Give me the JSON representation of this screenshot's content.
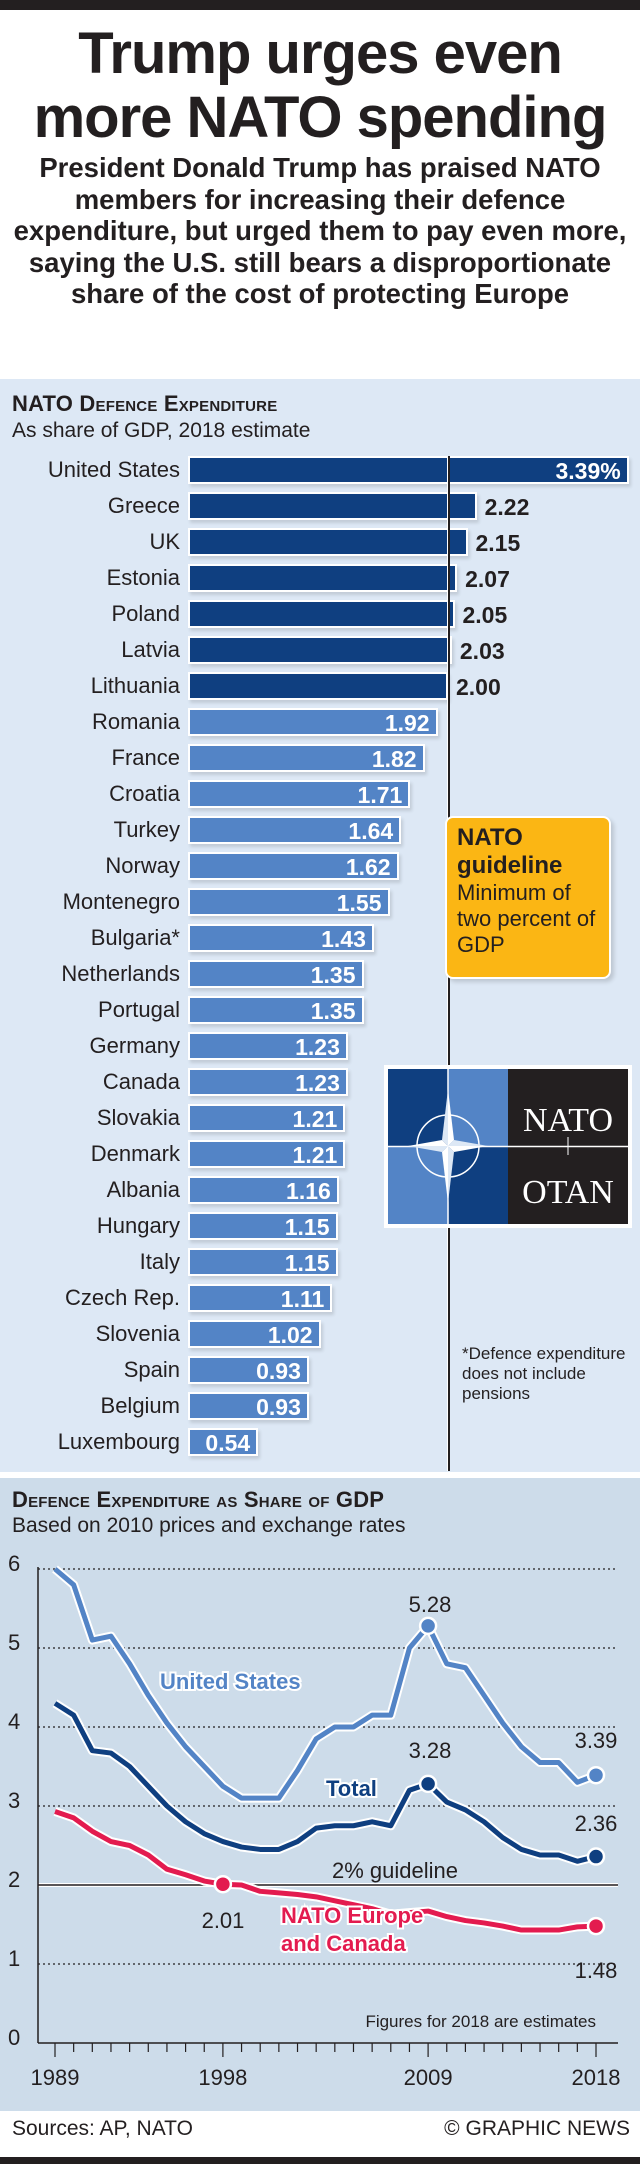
{
  "header": {
    "title_line1": "Trump urges even",
    "title_line2": "more NATO spending",
    "intro": "President Donald Trump has praised NATO members for increasing their defence expenditure, but urged them to pay even more, saying the U.S. still bears a disproportionate share of the cost of protecting Europe"
  },
  "colors": {
    "dark_blue": "#0f3f80",
    "light_blue": "#5384c6",
    "red": "#e31b4f",
    "guideline_box": "#fbb614"
  },
  "chart_data": [
    {
      "type": "bar",
      "orientation": "horizontal",
      "title": "NATO Defence Expenditure",
      "subtitle": "As share of GDP, 2018 estimate",
      "unit_suffix_first": "%",
      "reference_line": 2,
      "categories": [
        "United States",
        "Greece",
        "UK",
        "Estonia",
        "Poland",
        "Latvia",
        "Lithuania",
        "Romania",
        "France",
        "Croatia",
        "Turkey",
        "Norway",
        "Montenegro",
        "Bulgaria*",
        "Netherlands",
        "Portugal",
        "Germany",
        "Canada",
        "Slovakia",
        "Denmark",
        "Albania",
        "Hungary",
        "Italy",
        "Czech Rep.",
        "Slovenia",
        "Spain",
        "Belgium",
        "Luxembourg"
      ],
      "values": [
        3.39,
        2.22,
        2.15,
        2.07,
        2.05,
        2.03,
        2.0,
        1.92,
        1.82,
        1.71,
        1.64,
        1.62,
        1.55,
        1.43,
        1.35,
        1.35,
        1.23,
        1.23,
        1.21,
        1.21,
        1.16,
        1.15,
        1.15,
        1.11,
        1.02,
        0.93,
        0.93,
        0.54
      ],
      "labels": [
        "3.39%",
        "2.22",
        "2.15",
        "2.07",
        "2.05",
        "2.03",
        "2.00",
        "1.92",
        "1.82",
        "1.71",
        "1.64",
        "1.62",
        "1.55",
        "1.43",
        "1.35",
        "1.35",
        "1.23",
        "1.23",
        "1.21",
        "1.21",
        "1.16",
        "1.15",
        "1.15",
        "1.11",
        "1.02",
        "0.93",
        "0.93",
        "0.54"
      ]
    },
    {
      "type": "line",
      "title": "Defence Expenditure as Share of GDP",
      "subtitle": "Based on 2010 prices and exchange rates",
      "ylim": [
        0,
        6
      ],
      "yticks": [
        "0",
        "1",
        "2",
        "3",
        "4",
        "5",
        "6"
      ],
      "xlim": [
        1989,
        2018
      ],
      "xtick_labels": [
        "1989",
        "1998",
        "2009",
        "2018"
      ],
      "grid": "dotted horizontal",
      "x": [
        1989,
        1990,
        1991,
        1992,
        1993,
        1994,
        1995,
        1996,
        1997,
        1998,
        1999,
        2000,
        2001,
        2002,
        2003,
        2004,
        2005,
        2006,
        2007,
        2008,
        2009,
        2010,
        2011,
        2012,
        2013,
        2014,
        2015,
        2016,
        2017,
        2018
      ],
      "series": [
        {
          "name": "United States",
          "color": "#5384c6",
          "values": [
            6.0,
            5.8,
            5.1,
            5.15,
            4.8,
            4.4,
            4.05,
            3.75,
            3.5,
            3.25,
            3.1,
            3.1,
            3.1,
            3.45,
            3.85,
            4.0,
            4.0,
            4.15,
            4.15,
            5.0,
            5.28,
            4.8,
            4.75,
            4.4,
            4.05,
            3.75,
            3.55,
            3.55,
            3.3,
            3.39
          ],
          "annotations": [
            {
              "x": 2009,
              "label": "5.28"
            },
            {
              "x": 2018,
              "label": "3.39"
            }
          ]
        },
        {
          "name": "Total",
          "color": "#0f3f80",
          "values": [
            4.3,
            4.15,
            3.7,
            3.67,
            3.5,
            3.25,
            3.0,
            2.8,
            2.65,
            2.55,
            2.48,
            2.45,
            2.45,
            2.55,
            2.72,
            2.75,
            2.75,
            2.8,
            2.75,
            3.2,
            3.28,
            3.05,
            2.95,
            2.8,
            2.6,
            2.45,
            2.38,
            2.38,
            2.3,
            2.36
          ],
          "annotations": [
            {
              "x": 2009,
              "label": "3.28"
            },
            {
              "x": 2018,
              "label": "2.36"
            }
          ]
        },
        {
          "name": "NATO Europe and Canada",
          "name_line1": "NATO Europe",
          "name_line2": "and Canada",
          "color": "#e31b4f",
          "values": [
            2.93,
            2.85,
            2.68,
            2.55,
            2.5,
            2.38,
            2.2,
            2.13,
            2.05,
            2.01,
            2.0,
            1.92,
            1.9,
            1.88,
            1.85,
            1.8,
            1.75,
            1.7,
            1.63,
            1.65,
            1.67,
            1.6,
            1.55,
            1.52,
            1.48,
            1.43,
            1.43,
            1.43,
            1.47,
            1.48
          ],
          "annotations": [
            {
              "x": 1998,
              "label": "2.01"
            },
            {
              "x": 2018,
              "label": "1.48"
            }
          ]
        }
      ],
      "reference_line": {
        "y": 2,
        "label": "2% guideline"
      },
      "note": "Figures for 2018 are estimates"
    }
  ],
  "guideline_box": {
    "title_line1": "NATO",
    "title_line2": "guideline",
    "text": "Minimum of two percent of GDP"
  },
  "logo": {
    "text_top": "NATO",
    "text_bottom": "OTAN"
  },
  "footnote": "*Defence expenditure does not include pensions",
  "footer": {
    "sources": "Sources: AP, NATO",
    "credit": "© GRAPHIC NEWS"
  }
}
